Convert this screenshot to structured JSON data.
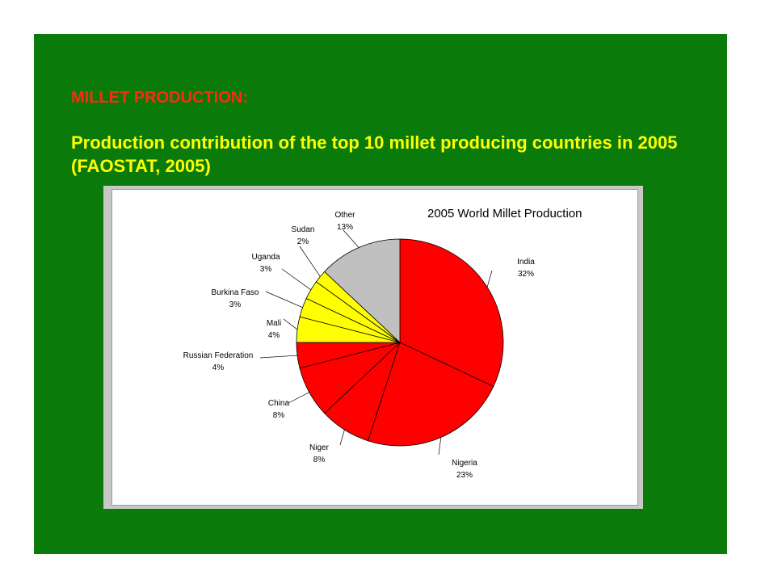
{
  "slide": {
    "heading": "MILLET PRODUCTION:",
    "subtitle": "Production contribution of the top 10 millet producing countries in 2005 (FAOSTAT, 2005)"
  },
  "colors": {
    "background": "#0a7a0a",
    "heading": "#ff2a10",
    "subtitle": "#ffff00"
  },
  "chart_data": {
    "type": "pie",
    "title": "2005 World Millet Production",
    "slices": [
      {
        "label": "India",
        "value": 32,
        "value_label": "32%",
        "color": "#ff0000"
      },
      {
        "label": "Nigeria",
        "value": 23,
        "value_label": "23%",
        "color": "#ff0000"
      },
      {
        "label": "Niger",
        "value": 8,
        "value_label": "8%",
        "color": "#ff0000"
      },
      {
        "label": "China",
        "value": 8,
        "value_label": "8%",
        "color": "#ff0000"
      },
      {
        "label": "Russian Federation",
        "value": 4,
        "value_label": "4%",
        "color": "#ff0000"
      },
      {
        "label": "Mali",
        "value": 4,
        "value_label": "4%",
        "color": "#ffff00"
      },
      {
        "label": "Burkina Faso",
        "value": 3,
        "value_label": "3%",
        "color": "#ffff00"
      },
      {
        "label": "Uganda",
        "value": 3,
        "value_label": "3%",
        "color": "#ffff00"
      },
      {
        "label": "Sudan",
        "value": 2,
        "value_label": "2%",
        "color": "#ffff00"
      },
      {
        "label": "Other",
        "value": 13,
        "value_label": "13%",
        "color": "#c0c0c0"
      }
    ]
  }
}
